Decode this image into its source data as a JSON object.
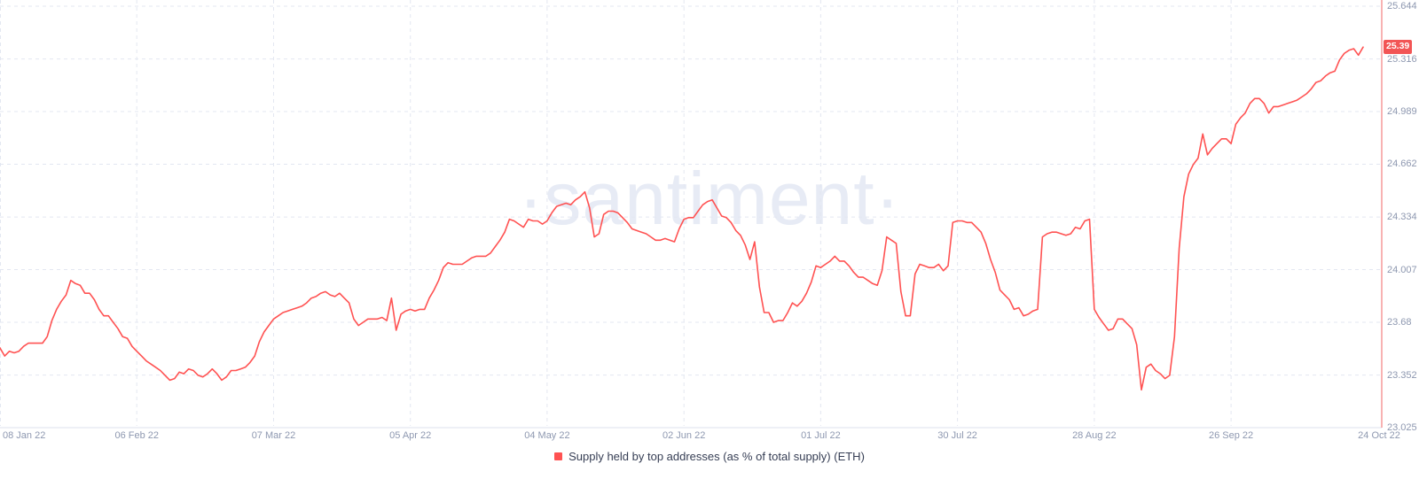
{
  "watermark": "·santiment·",
  "colors": {
    "line": "#ff5252",
    "badge_bg": "#f25555",
    "grid": "#e3e7f1",
    "bottom_axis": "#dde1ec",
    "right_axis": "#f38080",
    "axis_label": "#8e98b0",
    "legend_text": "#363e54",
    "watermark": "#e7ebf5"
  },
  "chart_data": {
    "type": "line",
    "title": "Supply held by top addresses (as % of total supply) (ETH)",
    "legend_position": "bottom",
    "grid": true,
    "legend": [
      {
        "label": "Supply held by top addresses (as % of total supply) (ETH)",
        "color": "#ff5252"
      }
    ],
    "ylim": [
      23.025,
      25.644
    ],
    "y_ticks": [
      "25.644",
      "25.316",
      "24.989",
      "24.662",
      "24.334",
      "24.007",
      "23.68",
      "23.352",
      "23.025"
    ],
    "x_ticks": [
      "08 Jan 22",
      "06 Feb 22",
      "07 Mar 22",
      "05 Apr 22",
      "04 May 22",
      "02 Jun 22",
      "01 Jul 22",
      "30 Jul 22",
      "28 Aug 22",
      "26 Sep 22",
      "24 Oct 22"
    ],
    "x_tick_day_offsets": [
      0,
      29,
      58,
      87,
      116,
      145,
      174,
      203,
      232,
      261,
      289
    ],
    "last_value_badge": "25.39",
    "series": [
      {
        "name": "Supply held by top addresses (as % of total supply) (ETH)",
        "start_date": "2022-01-08",
        "end_date": "2022-10-24",
        "interval_days": 1,
        "values": [
          23.52,
          23.47,
          23.5,
          23.49,
          23.5,
          23.53,
          23.55,
          23.55,
          23.55,
          23.55,
          23.59,
          23.69,
          23.76,
          23.81,
          23.85,
          23.94,
          23.92,
          23.91,
          23.86,
          23.86,
          23.82,
          23.76,
          23.72,
          23.72,
          23.68,
          23.64,
          23.59,
          23.58,
          23.53,
          23.5,
          23.47,
          23.44,
          23.42,
          23.4,
          23.38,
          23.35,
          23.32,
          23.33,
          23.37,
          23.36,
          23.39,
          23.38,
          23.35,
          23.34,
          23.36,
          23.39,
          23.36,
          23.32,
          23.34,
          23.38,
          23.38,
          23.39,
          23.4,
          23.43,
          23.47,
          23.56,
          23.62,
          23.66,
          23.7,
          23.72,
          23.74,
          23.75,
          23.76,
          23.77,
          23.78,
          23.8,
          23.83,
          23.84,
          23.86,
          23.87,
          23.85,
          23.84,
          23.86,
          23.83,
          23.8,
          23.7,
          23.66,
          23.68,
          23.7,
          23.7,
          23.7,
          23.71,
          23.69,
          23.83,
          23.63,
          23.73,
          23.75,
          23.76,
          23.75,
          23.76,
          23.76,
          23.83,
          23.88,
          23.94,
          24.02,
          24.05,
          24.04,
          24.04,
          24.04,
          24.06,
          24.08,
          24.09,
          24.09,
          24.09,
          24.11,
          24.15,
          24.19,
          24.24,
          24.32,
          24.31,
          24.29,
          24.27,
          24.32,
          24.31,
          24.31,
          24.29,
          24.31,
          24.36,
          24.4,
          24.41,
          24.42,
          24.41,
          24.44,
          24.46,
          24.49,
          24.39,
          24.21,
          24.23,
          24.35,
          24.37,
          24.37,
          24.36,
          24.33,
          24.3,
          24.26,
          24.25,
          24.24,
          24.23,
          24.21,
          24.19,
          24.19,
          24.2,
          24.19,
          24.18,
          24.26,
          24.32,
          24.33,
          24.33,
          24.37,
          24.41,
          24.43,
          24.44,
          24.39,
          24.34,
          24.33,
          24.3,
          24.25,
          24.22,
          24.16,
          24.07,
          24.18,
          23.9,
          23.74,
          23.74,
          23.68,
          23.69,
          23.69,
          23.74,
          23.8,
          23.78,
          23.81,
          23.86,
          23.93,
          24.03,
          24.02,
          24.04,
          24.06,
          24.09,
          24.06,
          24.06,
          24.03,
          23.99,
          23.96,
          23.96,
          23.94,
          23.92,
          23.91,
          24.0,
          24.21,
          24.19,
          24.17,
          23.87,
          23.72,
          23.72,
          23.98,
          24.04,
          24.03,
          24.02,
          24.02,
          24.04,
          24.0,
          24.03,
          24.3,
          24.31,
          24.31,
          24.3,
          24.3,
          24.27,
          24.24,
          24.17,
          24.07,
          23.99,
          23.88,
          23.85,
          23.82,
          23.76,
          23.77,
          23.72,
          23.73,
          23.75,
          23.76,
          24.21,
          24.23,
          24.24,
          24.24,
          24.23,
          24.22,
          24.23,
          24.27,
          24.26,
          24.31,
          24.32,
          23.76,
          23.71,
          23.67,
          23.63,
          23.64,
          23.7,
          23.7,
          23.67,
          23.64,
          23.54,
          23.26,
          23.4,
          23.42,
          23.38,
          23.36,
          23.33,
          23.35,
          23.59,
          24.14,
          24.46,
          24.6,
          24.66,
          24.7,
          24.85,
          24.72,
          24.76,
          24.79,
          24.82,
          24.82,
          24.79,
          24.91,
          24.95,
          24.98,
          25.04,
          25.07,
          25.07,
          25.04,
          24.98,
          25.02,
          25.02,
          25.03,
          25.04,
          25.05,
          25.06,
          25.08,
          25.1,
          25.13,
          25.17,
          25.18,
          25.21,
          25.23,
          25.24,
          25.31,
          25.35,
          25.37,
          25.38,
          25.34,
          25.39
        ]
      }
    ]
  }
}
